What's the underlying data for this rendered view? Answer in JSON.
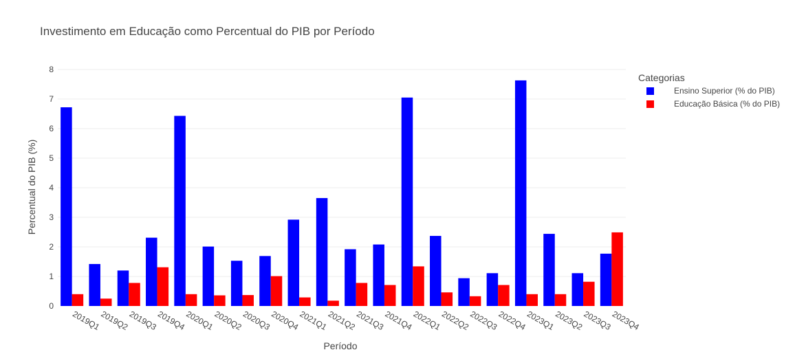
{
  "chart_data": {
    "type": "bar",
    "title": "Investimento em Educação como Percentual do PIB por Período",
    "xlabel": "Período",
    "ylabel": "Percentual do PIB (%)",
    "ylim": [
      0,
      8
    ],
    "yticks": [
      0,
      1,
      2,
      3,
      4,
      5,
      6,
      7,
      8
    ],
    "grid": true,
    "legend_position": "top-right",
    "legend_title": "Categorias",
    "categories": [
      "2019Q1",
      "2019Q2",
      "2019Q3",
      "2019Q4",
      "2020Q1",
      "2020Q2",
      "2020Q3",
      "2020Q4",
      "2021Q1",
      "2021Q2",
      "2021Q3",
      "2021Q4",
      "2022Q1",
      "2022Q2",
      "2022Q3",
      "2022Q4",
      "2023Q1",
      "2023Q2",
      "2023Q3",
      "2023Q4"
    ],
    "series": [
      {
        "name": "Ensino Superior (% do PIB)",
        "color": "#0000ff",
        "values": [
          6.72,
          1.42,
          1.2,
          2.31,
          6.43,
          2.01,
          1.53,
          1.69,
          2.92,
          3.65,
          1.92,
          2.08,
          7.05,
          2.37,
          0.94,
          1.11,
          7.63,
          2.44,
          1.11,
          1.77
        ]
      },
      {
        "name": "Educação Básica (% do PIB)",
        "color": "#ff0000",
        "values": [
          0.4,
          0.25,
          0.78,
          1.31,
          0.4,
          0.36,
          0.37,
          1.01,
          0.29,
          0.18,
          0.78,
          0.71,
          1.34,
          0.46,
          0.33,
          0.71,
          0.4,
          0.4,
          0.82,
          2.49
        ]
      }
    ]
  }
}
